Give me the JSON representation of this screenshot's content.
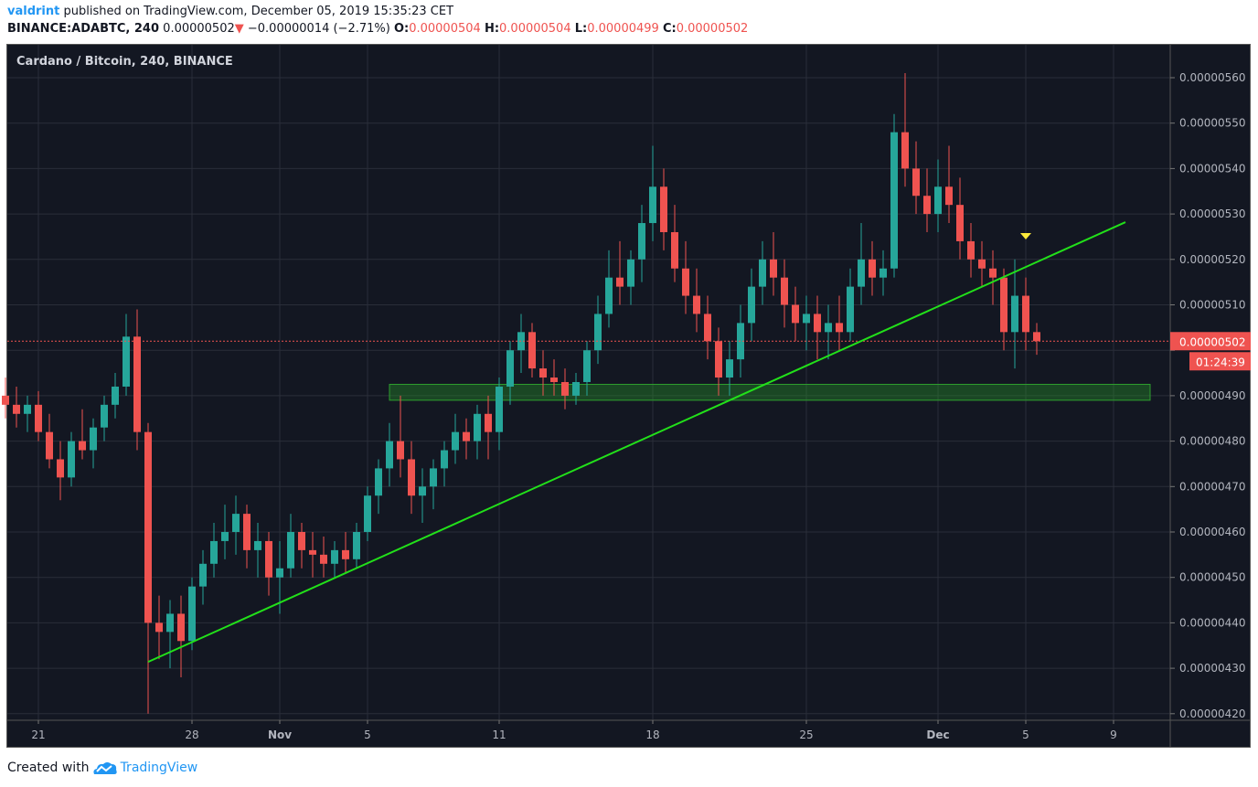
{
  "header": {
    "user": "valdrint",
    "published_text": "published on TradingView.com, December 05, 2019 15:35:23 CET",
    "symbol": "BINANCE:ADABTC, 240",
    "last_price": "0.00000502",
    "change": "−0.00000014 (−2.71%)",
    "change_direction_icon": "triangle-down-icon",
    "o_label": "O:",
    "o_value": "0.00000504",
    "h_label": "H:",
    "h_value": "0.00000504",
    "l_label": "L:",
    "l_value": "0.00000499",
    "c_label": "C:",
    "c_value": "0.00000502"
  },
  "legend": "Cardano / Bitcoin, 240, BINANCE",
  "footer": {
    "created_with": "Created with",
    "brand": "TradingView",
    "logo_icon": "tradingview-cloud-icon"
  },
  "colors": {
    "background": "#131722",
    "grid": "#2a2e39",
    "up": "#26a69a",
    "down": "#ef5350",
    "trendline": "#22e01a",
    "zone": "#1f7a1f",
    "marker": "#ffeb3b",
    "brand": "#2196f3"
  },
  "chart_data": {
    "type": "candlestick",
    "interval": "240",
    "price_ticks": [
      "0.00000420",
      "0.00000430",
      "0.00000440",
      "0.00000450",
      "0.00000460",
      "0.00000470",
      "0.00000480",
      "0.00000490",
      "0.00000500",
      "0.00000510",
      "0.00000520",
      "0.00000530",
      "0.00000540",
      "0.00000550",
      "0.00000560"
    ],
    "price_tick_labels": [
      "0.00000420",
      "0.00000430",
      "0.00000440",
      "0.00000450",
      "0.00000460",
      "0.00000470",
      "0.00000480",
      "0.00000490",
      "",
      "0.00000510",
      "0.00000520",
      "0.00000530",
      "0.00000540",
      "0.00000550",
      "0.00000560"
    ],
    "time_ticks": [
      {
        "date": "2019-10-21",
        "label": "21"
      },
      {
        "date": "2019-10-28",
        "label": "28"
      },
      {
        "date": "2019-11-01",
        "label": "Nov"
      },
      {
        "date": "2019-11-05",
        "label": "5"
      },
      {
        "date": "2019-11-11",
        "label": "11"
      },
      {
        "date": "2019-11-18",
        "label": "18"
      },
      {
        "date": "2019-11-25",
        "label": "25"
      },
      {
        "date": "2019-12-01",
        "label": "Dec"
      },
      {
        "date": "2019-12-05",
        "label": "5"
      },
      {
        "date": "2019-12-09",
        "label": "9"
      }
    ],
    "current_price": {
      "value": 5.02e-06,
      "label": "0.00000502",
      "countdown": "01:24:39"
    },
    "trendline": {
      "from": [
        "2019-10-26 00:00",
        4.314e-06
      ],
      "to": [
        "2019-12-09 13:00",
        5.282e-06
      ]
    },
    "support_zone": {
      "from_date": "2019-11-06 00:00",
      "to_date": "2019-12-10 16:00",
      "low": 4.89e-06,
      "high": 4.925e-06
    },
    "marker": {
      "date": "2019-12-05 00:00",
      "price": 5.25e-06,
      "shape": "triangle-down"
    },
    "candles_columns": [
      "time",
      "open",
      "high",
      "low",
      "close"
    ],
    "candles": [
      [
        "2019-10-19 12:00",
        4.9e-06,
        4.94e-06,
        4.85e-06,
        4.88e-06
      ],
      [
        "2019-10-20 00:00",
        4.88e-06,
        4.92e-06,
        4.83e-06,
        4.86e-06
      ],
      [
        "2019-10-20 12:00",
        4.86e-06,
        4.9e-06,
        4.82e-06,
        4.88e-06
      ],
      [
        "2019-10-21 00:00",
        4.88e-06,
        4.91e-06,
        4.8e-06,
        4.82e-06
      ],
      [
        "2019-10-21 12:00",
        4.82e-06,
        4.86e-06,
        4.74e-06,
        4.76e-06
      ],
      [
        "2019-10-22 00:00",
        4.76e-06,
        4.8e-06,
        4.67e-06,
        4.72e-06
      ],
      [
        "2019-10-22 12:00",
        4.72e-06,
        4.82e-06,
        4.7e-06,
        4.8e-06
      ],
      [
        "2019-10-23 00:00",
        4.8e-06,
        4.87e-06,
        4.76e-06,
        4.78e-06
      ],
      [
        "2019-10-23 12:00",
        4.78e-06,
        4.85e-06,
        4.74e-06,
        4.83e-06
      ],
      [
        "2019-10-24 00:00",
        4.83e-06,
        4.9e-06,
        4.8e-06,
        4.88e-06
      ],
      [
        "2019-10-24 12:00",
        4.88e-06,
        4.95e-06,
        4.85e-06,
        4.92e-06
      ],
      [
        "2019-10-25 00:00",
        4.92e-06,
        5.08e-06,
        4.9e-06,
        5.03e-06
      ],
      [
        "2019-10-25 12:00",
        5.03e-06,
        5.09e-06,
        4.78e-06,
        4.82e-06
      ],
      [
        "2019-10-26 00:00",
        4.82e-06,
        4.84e-06,
        4.2e-06,
        4.4e-06
      ],
      [
        "2019-10-26 12:00",
        4.4e-06,
        4.46e-06,
        4.32e-06,
        4.38e-06
      ],
      [
        "2019-10-27 00:00",
        4.38e-06,
        4.45e-06,
        4.3e-06,
        4.42e-06
      ],
      [
        "2019-10-27 12:00",
        4.42e-06,
        4.46e-06,
        4.28e-06,
        4.36e-06
      ],
      [
        "2019-10-28 00:00",
        4.36e-06,
        4.5e-06,
        4.34e-06,
        4.48e-06
      ],
      [
        "2019-10-28 12:00",
        4.48e-06,
        4.56e-06,
        4.44e-06,
        4.53e-06
      ],
      [
        "2019-10-29 00:00",
        4.53e-06,
        4.62e-06,
        4.5e-06,
        4.58e-06
      ],
      [
        "2019-10-29 12:00",
        4.58e-06,
        4.66e-06,
        4.54e-06,
        4.6e-06
      ],
      [
        "2019-10-30 00:00",
        4.6e-06,
        4.68e-06,
        4.55e-06,
        4.64e-06
      ],
      [
        "2019-10-30 12:00",
        4.64e-06,
        4.66e-06,
        4.52e-06,
        4.56e-06
      ],
      [
        "2019-10-31 00:00",
        4.56e-06,
        4.62e-06,
        4.5e-06,
        4.58e-06
      ],
      [
        "2019-10-31 12:00",
        4.58e-06,
        4.6e-06,
        4.46e-06,
        4.5e-06
      ],
      [
        "2019-11-01 00:00",
        4.5e-06,
        4.58e-06,
        4.42e-06,
        4.52e-06
      ],
      [
        "2019-11-01 12:00",
        4.52e-06,
        4.64e-06,
        4.5e-06,
        4.6e-06
      ],
      [
        "2019-11-02 00:00",
        4.6e-06,
        4.62e-06,
        4.52e-06,
        4.56e-06
      ],
      [
        "2019-11-02 12:00",
        4.56e-06,
        4.6e-06,
        4.5e-06,
        4.55e-06
      ],
      [
        "2019-11-03 00:00",
        4.55e-06,
        4.59e-06,
        4.5e-06,
        4.53e-06
      ],
      [
        "2019-11-03 12:00",
        4.53e-06,
        4.58e-06,
        4.5e-06,
        4.56e-06
      ],
      [
        "2019-11-04 00:00",
        4.56e-06,
        4.6e-06,
        4.51e-06,
        4.54e-06
      ],
      [
        "2019-11-04 12:00",
        4.54e-06,
        4.62e-06,
        4.52e-06,
        4.6e-06
      ],
      [
        "2019-11-05 00:00",
        4.6e-06,
        4.7e-06,
        4.58e-06,
        4.68e-06
      ],
      [
        "2019-11-05 12:00",
        4.68e-06,
        4.76e-06,
        4.64e-06,
        4.74e-06
      ],
      [
        "2019-11-06 00:00",
        4.74e-06,
        4.84e-06,
        4.7e-06,
        4.8e-06
      ],
      [
        "2019-11-06 12:00",
        4.8e-06,
        4.9e-06,
        4.72e-06,
        4.76e-06
      ],
      [
        "2019-11-07 00:00",
        4.76e-06,
        4.8e-06,
        4.64e-06,
        4.68e-06
      ],
      [
        "2019-11-07 12:00",
        4.68e-06,
        4.74e-06,
        4.62e-06,
        4.7e-06
      ],
      [
        "2019-11-08 00:00",
        4.7e-06,
        4.76e-06,
        4.65e-06,
        4.74e-06
      ],
      [
        "2019-11-08 12:00",
        4.74e-06,
        4.8e-06,
        4.7e-06,
        4.78e-06
      ],
      [
        "2019-11-09 00:00",
        4.78e-06,
        4.86e-06,
        4.75e-06,
        4.82e-06
      ],
      [
        "2019-11-09 12:00",
        4.82e-06,
        4.85e-06,
        4.76e-06,
        4.8e-06
      ],
      [
        "2019-11-10 00:00",
        4.8e-06,
        4.88e-06,
        4.76e-06,
        4.86e-06
      ],
      [
        "2019-11-10 12:00",
        4.86e-06,
        4.9e-06,
        4.76e-06,
        4.82e-06
      ],
      [
        "2019-11-11 00:00",
        4.82e-06,
        4.94e-06,
        4.78e-06,
        4.92e-06
      ],
      [
        "2019-11-11 12:00",
        4.92e-06,
        5.02e-06,
        4.88e-06,
        5e-06
      ],
      [
        "2019-11-12 00:00",
        5e-06,
        5.08e-06,
        4.95e-06,
        5.04e-06
      ],
      [
        "2019-11-12 12:00",
        5.04e-06,
        5.06e-06,
        4.94e-06,
        4.96e-06
      ],
      [
        "2019-11-13 00:00",
        4.96e-06,
        5e-06,
        4.9e-06,
        4.94e-06
      ],
      [
        "2019-11-13 12:00",
        4.94e-06,
        4.98e-06,
        4.9e-06,
        4.93e-06
      ],
      [
        "2019-11-14 00:00",
        4.93e-06,
        4.96e-06,
        4.87e-06,
        4.9e-06
      ],
      [
        "2019-11-14 12:00",
        4.9e-06,
        4.95e-06,
        4.88e-06,
        4.93e-06
      ],
      [
        "2019-11-15 00:00",
        4.93e-06,
        5.02e-06,
        4.9e-06,
        5e-06
      ],
      [
        "2019-11-15 12:00",
        5e-06,
        5.12e-06,
        4.97e-06,
        5.08e-06
      ],
      [
        "2019-11-16 00:00",
        5.08e-06,
        5.22e-06,
        5.05e-06,
        5.16e-06
      ],
      [
        "2019-11-16 12:00",
        5.16e-06,
        5.24e-06,
        5.1e-06,
        5.14e-06
      ],
      [
        "2019-11-17 00:00",
        5.14e-06,
        5.22e-06,
        5.1e-06,
        5.2e-06
      ],
      [
        "2019-11-17 12:00",
        5.2e-06,
        5.32e-06,
        5.15e-06,
        5.28e-06
      ],
      [
        "2019-11-18 00:00",
        5.28e-06,
        5.45e-06,
        5.24e-06,
        5.36e-06
      ],
      [
        "2019-11-18 12:00",
        5.36e-06,
        5.4e-06,
        5.22e-06,
        5.26e-06
      ],
      [
        "2019-11-19 00:00",
        5.26e-06,
        5.32e-06,
        5.15e-06,
        5.18e-06
      ],
      [
        "2019-11-19 12:00",
        5.18e-06,
        5.24e-06,
        5.08e-06,
        5.12e-06
      ],
      [
        "2019-11-20 00:00",
        5.12e-06,
        5.18e-06,
        5.04e-06,
        5.08e-06
      ],
      [
        "2019-11-20 12:00",
        5.08e-06,
        5.12e-06,
        4.98e-06,
        5.02e-06
      ],
      [
        "2019-11-21 00:00",
        5.02e-06,
        5.05e-06,
        4.9e-06,
        4.94e-06
      ],
      [
        "2019-11-21 12:00",
        4.94e-06,
        5.02e-06,
        4.9e-06,
        4.98e-06
      ],
      [
        "2019-11-22 00:00",
        4.98e-06,
        5.1e-06,
        4.94e-06,
        5.06e-06
      ],
      [
        "2019-11-22 12:00",
        5.06e-06,
        5.18e-06,
        5.02e-06,
        5.14e-06
      ],
      [
        "2019-11-23 00:00",
        5.14e-06,
        5.24e-06,
        5.1e-06,
        5.2e-06
      ],
      [
        "2019-11-23 12:00",
        5.2e-06,
        5.26e-06,
        5.12e-06,
        5.16e-06
      ],
      [
        "2019-11-24 00:00",
        5.16e-06,
        5.2e-06,
        5.05e-06,
        5.1e-06
      ],
      [
        "2019-11-24 12:00",
        5.1e-06,
        5.14e-06,
        5.02e-06,
        5.06e-06
      ],
      [
        "2019-11-25 00:00",
        5.06e-06,
        5.12e-06,
        5e-06,
        5.08e-06
      ],
      [
        "2019-11-25 12:00",
        5.08e-06,
        5.12e-06,
        4.98e-06,
        5.04e-06
      ],
      [
        "2019-11-26 00:00",
        5.04e-06,
        5.1e-06,
        4.98e-06,
        5.06e-06
      ],
      [
        "2019-11-26 12:00",
        5.06e-06,
        5.12e-06,
        5e-06,
        5.04e-06
      ],
      [
        "2019-11-27 00:00",
        5.04e-06,
        5.18e-06,
        5.02e-06,
        5.14e-06
      ],
      [
        "2019-11-27 12:00",
        5.14e-06,
        5.28e-06,
        5.1e-06,
        5.2e-06
      ],
      [
        "2019-11-28 00:00",
        5.2e-06,
        5.24e-06,
        5.12e-06,
        5.16e-06
      ],
      [
        "2019-11-28 12:00",
        5.16e-06,
        5.22e-06,
        5.12e-06,
        5.18e-06
      ],
      [
        "2019-11-29 00:00",
        5.18e-06,
        5.52e-06,
        5.16e-06,
        5.48e-06
      ],
      [
        "2019-11-29 12:00",
        5.48e-06,
        5.61e-06,
        5.36e-06,
        5.4e-06
      ],
      [
        "2019-11-30 00:00",
        5.4e-06,
        5.46e-06,
        5.3e-06,
        5.34e-06
      ],
      [
        "2019-11-30 12:00",
        5.34e-06,
        5.4e-06,
        5.26e-06,
        5.3e-06
      ],
      [
        "2019-12-01 00:00",
        5.3e-06,
        5.42e-06,
        5.26e-06,
        5.36e-06
      ],
      [
        "2019-12-01 12:00",
        5.36e-06,
        5.45e-06,
        5.28e-06,
        5.32e-06
      ],
      [
        "2019-12-02 00:00",
        5.32e-06,
        5.38e-06,
        5.2e-06,
        5.24e-06
      ],
      [
        "2019-12-02 12:00",
        5.24e-06,
        5.28e-06,
        5.16e-06,
        5.2e-06
      ],
      [
        "2019-12-03 00:00",
        5.2e-06,
        5.24e-06,
        5.14e-06,
        5.18e-06
      ],
      [
        "2019-12-03 12:00",
        5.18e-06,
        5.22e-06,
        5.1e-06,
        5.16e-06
      ],
      [
        "2019-12-04 00:00",
        5.16e-06,
        5.18e-06,
        5e-06,
        5.04e-06
      ],
      [
        "2019-12-04 12:00",
        5.04e-06,
        5.2e-06,
        4.96e-06,
        5.12e-06
      ],
      [
        "2019-12-05 00:00",
        5.12e-06,
        5.16e-06,
        5e-06,
        5.04e-06
      ],
      [
        "2019-12-05 12:00",
        5.04e-06,
        5.06e-06,
        4.99e-06,
        5.02e-06
      ]
    ]
  }
}
